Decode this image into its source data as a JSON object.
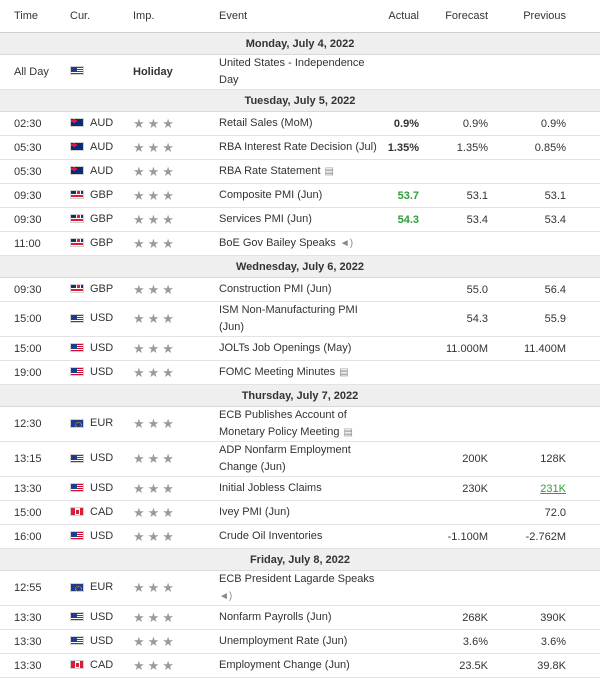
{
  "header": {
    "time": "Time",
    "cur": "Cur.",
    "imp": "Imp.",
    "event": "Event",
    "actual": "Actual",
    "forecast": "Forecast",
    "previous": "Previous"
  },
  "days": [
    {
      "label": "Monday, July 4, 2022"
    },
    {
      "label": "Tuesday, July 5, 2022"
    },
    {
      "label": "Wednesday, July 6, 2022"
    },
    {
      "label": "Thursday, July 7, 2022"
    },
    {
      "label": "Friday, July 8, 2022"
    }
  ],
  "holiday": {
    "time": "All Day",
    "imp": "Holiday",
    "event": "United States - Independence Day"
  },
  "rows": [
    {
      "time": "02:30",
      "cur": "AUD",
      "event": "Retail Sales (MoM)",
      "actual": "0.9%",
      "forecast": "0.9%",
      "previous": "0.9%"
    },
    {
      "time": "05:30",
      "cur": "AUD",
      "event": "RBA Interest Rate Decision (Jul)",
      "actual": "1.35%",
      "forecast": "1.35%",
      "previous": "0.85%"
    },
    {
      "time": "05:30",
      "cur": "AUD",
      "event": "RBA Rate Statement",
      "actual": "",
      "forecast": "",
      "previous": ""
    },
    {
      "time": "09:30",
      "cur": "GBP",
      "event": "Composite PMI (Jun)",
      "actual": "53.7",
      "forecast": "53.1",
      "previous": "53.1"
    },
    {
      "time": "09:30",
      "cur": "GBP",
      "event": "Services PMI (Jun)",
      "actual": "54.3",
      "forecast": "53.4",
      "previous": "53.4"
    },
    {
      "time": "11:00",
      "cur": "GBP",
      "event": "BoE Gov Bailey Speaks",
      "actual": "",
      "forecast": "",
      "previous": ""
    },
    {
      "time": "09:30",
      "cur": "GBP",
      "event": "Construction PMI (Jun)",
      "actual": "",
      "forecast": "55.0",
      "previous": "56.4"
    },
    {
      "time": "15:00",
      "cur": "USD",
      "event_l1": "ISM Non-Manufacturing PMI",
      "event_l2": "(Jun)",
      "actual": "",
      "forecast": "54.3",
      "previous": "55.9"
    },
    {
      "time": "15:00",
      "cur": "USD",
      "event": "JOLTs Job Openings (May)",
      "actual": "",
      "forecast": "11.000M",
      "previous": "11.400M"
    },
    {
      "time": "19:00",
      "cur": "USD",
      "event": "FOMC Meeting Minutes",
      "actual": "",
      "forecast": "",
      "previous": ""
    },
    {
      "time": "12:30",
      "cur": "EUR",
      "event_l1": "ECB Publishes Account of",
      "event_l2": "Monetary Policy Meeting",
      "actual": "",
      "forecast": "",
      "previous": ""
    },
    {
      "time": "13:15",
      "cur": "USD",
      "event_l1": "ADP Nonfarm Employment",
      "event_l2": "Change (Jun)",
      "actual": "",
      "forecast": "200K",
      "previous": "128K"
    },
    {
      "time": "13:30",
      "cur": "USD",
      "event": "Initial Jobless Claims",
      "actual": "",
      "forecast": "230K",
      "previous": "231K"
    },
    {
      "time": "15:00",
      "cur": "CAD",
      "event": "Ivey PMI (Jun)",
      "actual": "",
      "forecast": "",
      "previous": "72.0"
    },
    {
      "time": "16:00",
      "cur": "USD",
      "event": "Crude Oil Inventories",
      "actual": "",
      "forecast": "-1.100M",
      "previous": "-2.762M"
    },
    {
      "time": "12:55",
      "cur": "EUR",
      "event_l1": "ECB President Lagarde Speaks",
      "actual": "",
      "forecast": "",
      "previous": ""
    },
    {
      "time": "13:30",
      "cur": "USD",
      "event": "Nonfarm Payrolls (Jun)",
      "actual": "",
      "forecast": "268K",
      "previous": "390K"
    },
    {
      "time": "13:30",
      "cur": "USD",
      "event": "Unemployment Rate (Jun)",
      "actual": "",
      "forecast": "3.6%",
      "previous": "3.6%"
    },
    {
      "time": "13:30",
      "cur": "CAD",
      "event": "Employment Change (Jun)",
      "actual": "",
      "forecast": "23.5K",
      "previous": "39.8K"
    }
  ],
  "icons": {
    "importance": "star-icon",
    "speaker": "speaker-icon",
    "document": "document-icon"
  },
  "colors": {
    "positive": "#2e9e3a",
    "day_header_bg": "#efefef"
  }
}
